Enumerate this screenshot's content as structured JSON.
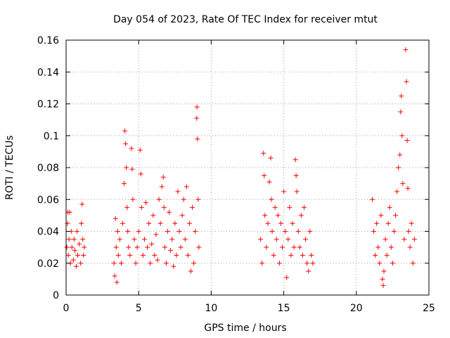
{
  "chart_data": {
    "type": "scatter",
    "title": "Day 054 of 2023, Rate Of TEC Index for receiver mtut",
    "xlabel": "GPS time / hours",
    "ylabel": "ROTI / TECUs",
    "xlim": [
      0,
      25
    ],
    "ylim": [
      0,
      0.16
    ],
    "xticks": [
      0,
      5,
      10,
      15,
      20,
      25
    ],
    "xtick_labels": [
      "0",
      "5",
      "10",
      "15",
      "20",
      "25"
    ],
    "yticks": [
      0,
      0.02,
      0.04,
      0.06,
      0.08,
      0.1,
      0.12,
      0.14,
      0.16
    ],
    "ytick_labels": [
      "0",
      "0.02",
      "0.04",
      "0.06",
      "0.08",
      "0.1",
      "0.12",
      "0.14",
      "0.16"
    ],
    "grid": true,
    "marker": "+",
    "color": "#ff0000",
    "series": [
      {
        "points": [
          [
            0.05,
            0.03
          ],
          [
            0.1,
            0.045
          ],
          [
            0.12,
            0.052
          ],
          [
            0.15,
            0.025
          ],
          [
            0.2,
            0.035
          ],
          [
            0.25,
            0.052
          ],
          [
            0.3,
            0.02
          ],
          [
            0.35,
            0.04
          ],
          [
            0.4,
            0.03
          ],
          [
            0.5,
            0.022
          ],
          [
            0.55,
            0.035
          ],
          [
            0.6,
            0.028
          ],
          [
            0.7,
            0.018
          ],
          [
            0.75,
            0.04
          ],
          [
            0.8,
            0.025
          ],
          [
            0.9,
            0.032
          ],
          [
            1.0,
            0.02
          ],
          [
            1.05,
            0.045
          ],
          [
            1.1,
            0.057
          ],
          [
            1.15,
            0.035
          ],
          [
            1.2,
            0.025
          ],
          [
            1.25,
            0.03
          ],
          [
            3.3,
            0.02
          ],
          [
            3.35,
            0.012
          ],
          [
            3.4,
            0.048
          ],
          [
            3.45,
            0.03
          ],
          [
            3.5,
            0.008
          ],
          [
            3.55,
            0.04
          ],
          [
            3.6,
            0.025
          ],
          [
            3.7,
            0.035
          ],
          [
            3.8,
            0.02
          ],
          [
            3.9,
            0.045
          ],
          [
            4.0,
            0.07
          ],
          [
            4.05,
            0.103
          ],
          [
            4.1,
            0.095
          ],
          [
            4.15,
            0.08
          ],
          [
            4.2,
            0.055
          ],
          [
            4.25,
            0.04
          ],
          [
            4.3,
            0.03
          ],
          [
            4.4,
            0.025
          ],
          [
            4.5,
            0.092
          ],
          [
            4.55,
            0.079
          ],
          [
            4.6,
            0.06
          ],
          [
            4.7,
            0.035
          ],
          [
            4.8,
            0.02
          ],
          [
            4.9,
            0.03
          ],
          [
            5.0,
            0.04
          ],
          [
            5.1,
            0.091
          ],
          [
            5.15,
            0.076
          ],
          [
            5.2,
            0.055
          ],
          [
            5.3,
            0.025
          ],
          [
            5.4,
            0.035
          ],
          [
            5.5,
            0.058
          ],
          [
            5.6,
            0.03
          ],
          [
            5.7,
            0.045
          ],
          [
            5.8,
            0.02
          ],
          [
            5.9,
            0.032
          ],
          [
            6.0,
            0.05
          ],
          [
            6.1,
            0.025
          ],
          [
            6.2,
            0.038
          ],
          [
            6.3,
            0.022
          ],
          [
            6.4,
            0.06
          ],
          [
            6.5,
            0.045
          ],
          [
            6.6,
            0.068
          ],
          [
            6.7,
            0.074
          ],
          [
            6.75,
            0.055
          ],
          [
            6.8,
            0.03
          ],
          [
            6.9,
            0.02
          ],
          [
            7.0,
            0.04
          ],
          [
            7.1,
            0.052
          ],
          [
            7.2,
            0.028
          ],
          [
            7.3,
            0.035
          ],
          [
            7.4,
            0.018
          ],
          [
            7.5,
            0.045
          ],
          [
            7.6,
            0.025
          ],
          [
            7.7,
            0.065
          ],
          [
            7.8,
            0.04
          ],
          [
            7.9,
            0.03
          ],
          [
            8.0,
            0.05
          ],
          [
            8.1,
            0.06
          ],
          [
            8.2,
            0.035
          ],
          [
            8.3,
            0.068
          ],
          [
            8.4,
            0.025
          ],
          [
            8.5,
            0.045
          ],
          [
            8.6,
            0.015
          ],
          [
            8.7,
            0.055
          ],
          [
            8.8,
            0.02
          ],
          [
            8.9,
            0.04
          ],
          [
            9.0,
            0.111
          ],
          [
            9.02,
            0.118
          ],
          [
            9.05,
            0.098
          ],
          [
            9.1,
            0.06
          ],
          [
            9.15,
            0.03
          ],
          [
            13.4,
            0.035
          ],
          [
            13.5,
            0.02
          ],
          [
            13.6,
            0.089
          ],
          [
            13.65,
            0.075
          ],
          [
            13.7,
            0.05
          ],
          [
            13.8,
            0.03
          ],
          [
            13.9,
            0.045
          ],
          [
            14.0,
            0.071
          ],
          [
            14.1,
            0.086
          ],
          [
            14.15,
            0.06
          ],
          [
            14.2,
            0.04
          ],
          [
            14.3,
            0.025
          ],
          [
            14.4,
            0.055
          ],
          [
            14.5,
            0.035
          ],
          [
            14.6,
            0.05
          ],
          [
            14.7,
            0.02
          ],
          [
            14.8,
            0.045
          ],
          [
            14.9,
            0.03
          ],
          [
            15.0,
            0.065
          ],
          [
            15.1,
            0.04
          ],
          [
            15.2,
            0.011
          ],
          [
            15.3,
            0.035
          ],
          [
            15.4,
            0.055
          ],
          [
            15.5,
            0.025
          ],
          [
            15.6,
            0.045
          ],
          [
            15.7,
            0.03
          ],
          [
            15.8,
            0.085
          ],
          [
            15.85,
            0.075
          ],
          [
            15.9,
            0.065
          ],
          [
            16.0,
            0.04
          ],
          [
            16.1,
            0.03
          ],
          [
            16.2,
            0.05
          ],
          [
            16.3,
            0.025
          ],
          [
            16.4,
            0.055
          ],
          [
            16.5,
            0.035
          ],
          [
            16.6,
            0.02
          ],
          [
            16.7,
            0.015
          ],
          [
            16.8,
            0.04
          ],
          [
            16.9,
            0.025
          ],
          [
            17.0,
            0.02
          ],
          [
            21.1,
            0.06
          ],
          [
            21.2,
            0.04
          ],
          [
            21.3,
            0.025
          ],
          [
            21.4,
            0.045
          ],
          [
            21.5,
            0.03
          ],
          [
            21.6,
            0.02
          ],
          [
            21.7,
            0.05
          ],
          [
            21.8,
            0.01
          ],
          [
            21.85,
            0.006
          ],
          [
            21.9,
            0.015
          ],
          [
            22.0,
            0.035
          ],
          [
            22.1,
            0.025
          ],
          [
            22.2,
            0.045
          ],
          [
            22.3,
            0.055
          ],
          [
            22.4,
            0.03
          ],
          [
            22.5,
            0.02
          ],
          [
            22.6,
            0.04
          ],
          [
            22.7,
            0.05
          ],
          [
            22.8,
            0.065
          ],
          [
            22.9,
            0.08
          ],
          [
            23.0,
            0.088
          ],
          [
            23.05,
            0.115
          ],
          [
            23.1,
            0.125
          ],
          [
            23.15,
            0.1
          ],
          [
            23.2,
            0.07
          ],
          [
            23.3,
            0.035
          ],
          [
            23.4,
            0.154
          ],
          [
            23.45,
            0.134
          ],
          [
            23.5,
            0.097
          ],
          [
            23.55,
            0.067
          ],
          [
            23.6,
            0.04
          ],
          [
            23.7,
            0.03
          ],
          [
            23.8,
            0.045
          ],
          [
            23.9,
            0.02
          ],
          [
            24.0,
            0.035
          ]
        ]
      }
    ]
  }
}
